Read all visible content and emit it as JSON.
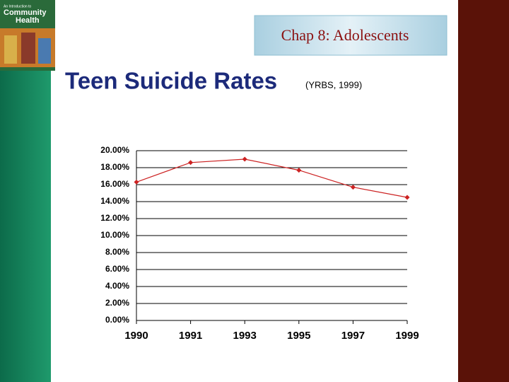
{
  "header": {
    "book": {
      "line1": "An Introduction to",
      "line2": "Community",
      "line3": "Health"
    },
    "chapter": "Chap 8: Adolescents"
  },
  "chart_data": {
    "type": "line",
    "title": "Teen Suicide Rates",
    "subtitle": "(YRBS, 1999)",
    "categories": [
      "1990",
      "1991",
      "1993",
      "1995",
      "1997",
      "1999"
    ],
    "series": [
      {
        "color": "#cc2222",
        "values": [
          16.3,
          18.6,
          19.0,
          17.7,
          15.7,
          14.5
        ]
      }
    ],
    "ylim": [
      0,
      20
    ],
    "yticks": [
      {
        "value": 0,
        "label": "0.00%"
      },
      {
        "value": 2,
        "label": "2.00%"
      },
      {
        "value": 4,
        "label": "4.00%"
      },
      {
        "value": 6,
        "label": "6.00%"
      },
      {
        "value": 8,
        "label": "8.00%"
      },
      {
        "value": 10,
        "label": "10.00%"
      },
      {
        "value": 12,
        "label": "12.00%"
      },
      {
        "value": 14,
        "label": "14.00%"
      },
      {
        "value": 16,
        "label": "16.00%"
      },
      {
        "value": 18,
        "label": "18.00%"
      },
      {
        "value": 20,
        "label": "20.00%"
      }
    ],
    "grid": true
  }
}
